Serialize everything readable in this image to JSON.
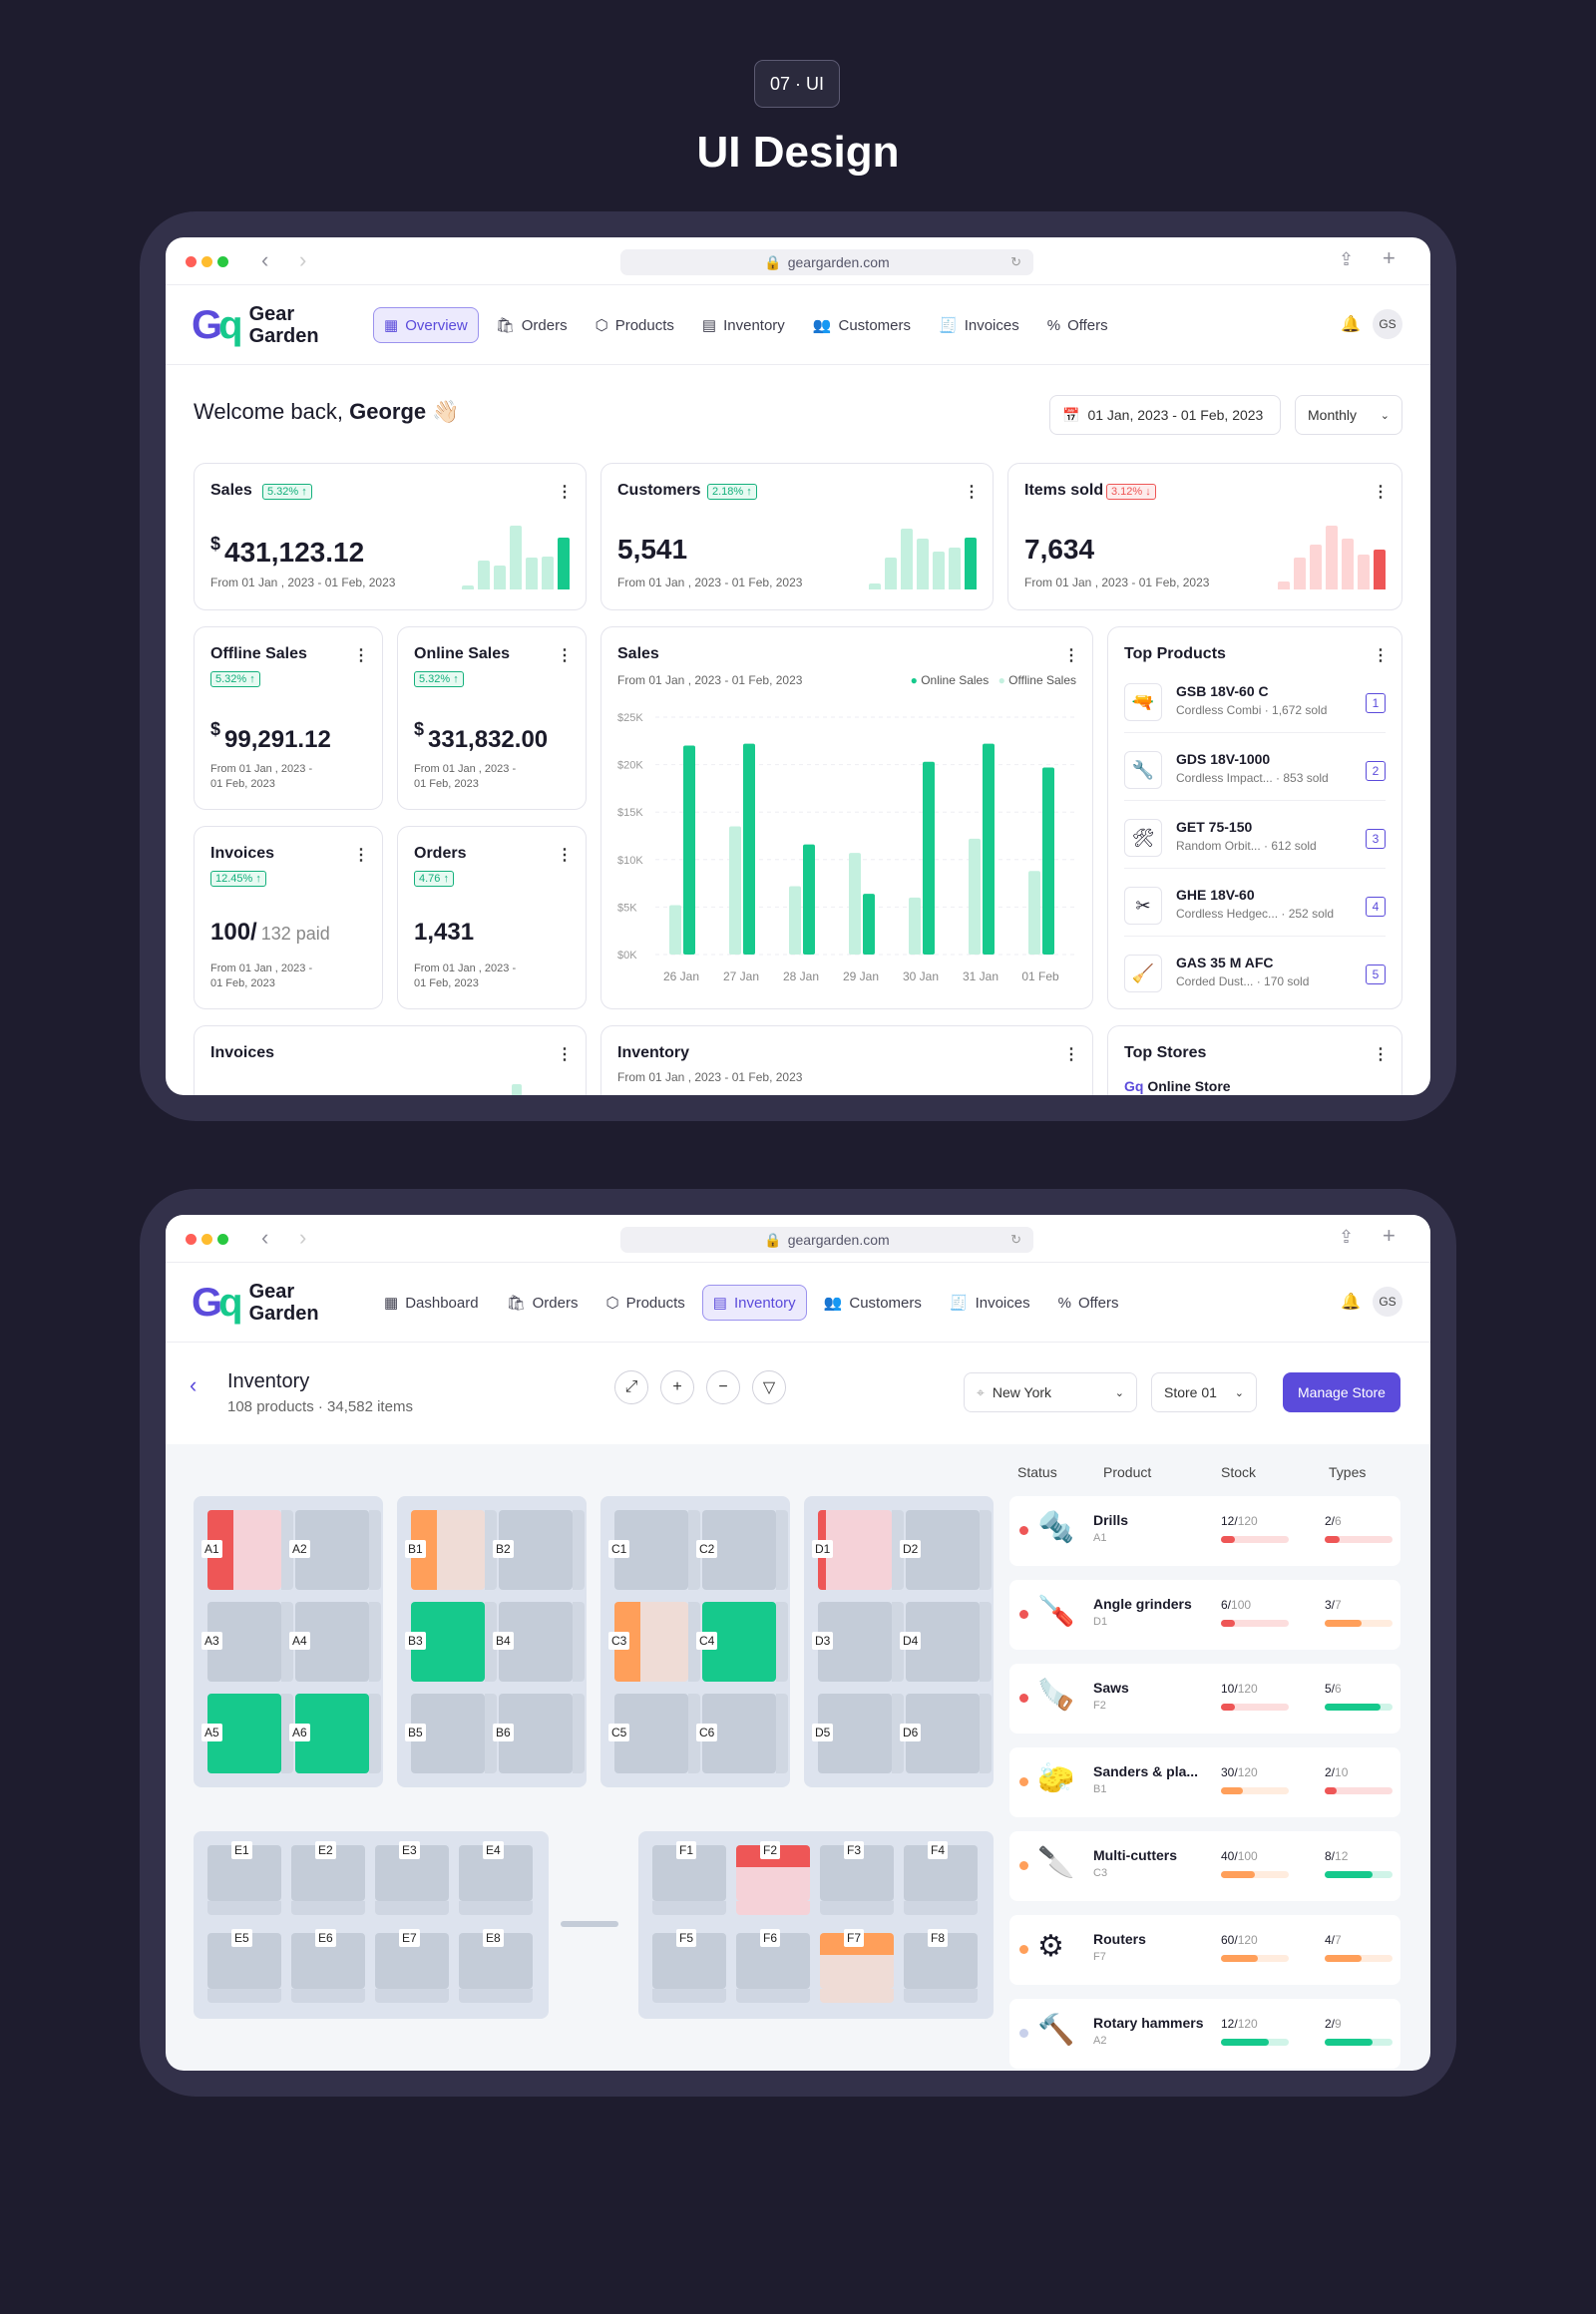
{
  "header": {
    "badge": "07 · UI",
    "title": "UI Design"
  },
  "browser": {
    "url": "geargarden.com"
  },
  "brand": {
    "name_1": "Gear",
    "name_2": "Garden",
    "primary": "#5b4bdb",
    "green": "#16c98c",
    "red": "#ee5656",
    "orange": "#ff9f5a"
  },
  "dashboard": {
    "nav": [
      "Overview",
      "Orders",
      "Products",
      "Inventory",
      "Customers",
      "Invoices",
      "Offers"
    ],
    "avatar": "GS",
    "welcome_prefix": "Welcome back,",
    "welcome_name": "George",
    "welcome_emoji": "👋🏻",
    "date_range": "01 Jan, 2023 - 01 Feb, 2023",
    "period": "Monthly",
    "kpis": [
      {
        "title": "Sales",
        "badge": "5.32% ↑",
        "currency": "$",
        "value": "431,123.12",
        "sub": "From 01 Jan , 2023 - 01 Feb, 2023",
        "trend": "up",
        "bars": [
          0.06,
          0.45,
          0.38,
          1.0,
          0.5,
          0.52,
          0.82
        ]
      },
      {
        "title": "Customers",
        "badge": "2.18% ↑",
        "currency": "",
        "value": "5,541",
        "sub": "From 01 Jan , 2023 - 01 Feb, 2023",
        "trend": "up",
        "bars": [
          0.1,
          0.5,
          0.95,
          0.8,
          0.6,
          0.65,
          0.82
        ]
      },
      {
        "title": "Items sold",
        "badge": "3.12% ↓",
        "currency": "",
        "value": "7,634",
        "sub": "From 01 Jan , 2023 - 01 Feb, 2023",
        "trend": "down",
        "bars": [
          0.12,
          0.5,
          0.7,
          1.0,
          0.8,
          0.55,
          0.62
        ]
      }
    ],
    "small_cards": [
      {
        "title": "Offline Sales",
        "badge": "5.32% ↑",
        "currency": "$",
        "value": "99,291.12",
        "value_suffix": "",
        "sub1": "From 01 Jan , 2023 -",
        "sub2": "01 Feb, 2023"
      },
      {
        "title": "Online Sales",
        "badge": "5.32% ↑",
        "currency": "$",
        "value": "331,832.00",
        "value_suffix": "",
        "sub1": "From 01 Jan , 2023 -",
        "sub2": "01 Feb, 2023"
      },
      {
        "title": "Invoices",
        "badge": "12.45% ↑",
        "currency": "",
        "value": "100/",
        "value_suffix": "132 paid",
        "sub1": "From 01 Jan , 2023 -",
        "sub2": "01 Feb, 2023"
      },
      {
        "title": "Orders",
        "badge": "4.76 ↑",
        "currency": "",
        "value": "1,431",
        "value_suffix": "",
        "sub1": "From 01 Jan , 2023 -",
        "sub2": "01 Feb, 2023"
      }
    ],
    "sales_chart": {
      "title": "Sales",
      "sub": "From 01 Jan , 2023 - 01 Feb, 2023",
      "legend_online": "Online Sales",
      "legend_offline": "Offline Sales"
    },
    "top_products": {
      "title": "Top Products",
      "items": [
        {
          "name": "GSB 18V-60 C",
          "desc": "Cordless Combi · 1,672 sold",
          "rank": "1",
          "icon": "drill-icon"
        },
        {
          "name": "GDS 18V-1000",
          "desc": "Cordless Impact... · 853 sold",
          "rank": "2",
          "icon": "impact-icon"
        },
        {
          "name": "GET 75-150",
          "desc": "Random Orbit... · 612 sold",
          "rank": "3",
          "icon": "sander-icon"
        },
        {
          "name": "GHE 18V-60",
          "desc": "Cordless Hedgec... · 252 sold",
          "rank": "4",
          "icon": "hedge-icon"
        },
        {
          "name": "GAS 35 M AFC",
          "desc": "Corded Dust... · 170 sold",
          "rank": "5",
          "icon": "vacuum-icon"
        }
      ]
    },
    "bottom": {
      "invoices": "Invoices",
      "inventory": "Inventory",
      "inventory_sub": "From 01 Jan , 2023 - 01 Feb, 2023",
      "top_stores": "Top Stores",
      "store1": "Online Store"
    }
  },
  "chart_data": {
    "type": "bar",
    "categories": [
      "26 Jan",
      "27 Jan",
      "28 Jan",
      "29 Jan",
      "30 Jan",
      "31 Jan",
      "01 Feb"
    ],
    "series": [
      {
        "name": "Online Sales",
        "values": [
          22000,
          22200,
          11600,
          6400,
          20300,
          22200,
          19700
        ]
      },
      {
        "name": "Offline Sales",
        "values": [
          5200,
          13500,
          7200,
          10700,
          6000,
          12200,
          8800
        ]
      }
    ],
    "ylim": [
      0,
      25000
    ],
    "yticks": [
      "$0K",
      "$5K",
      "$10K",
      "$15K",
      "$20K",
      "$25K"
    ],
    "colors": {
      "online": "#16c98c",
      "offline": "#c4f0df"
    }
  },
  "inventory": {
    "nav": [
      "Dashboard",
      "Orders",
      "Products",
      "Inventory",
      "Customers",
      "Invoices",
      "Offers"
    ],
    "title": "Inventory",
    "sub": "108 products · 34,582 items",
    "city": "New York",
    "store": "Store 01",
    "manage": "Manage Store",
    "cols": [
      "Status",
      "Product",
      "Stock",
      "Types"
    ],
    "blocks": [
      [
        "A1",
        "A2",
        "A3",
        "A4",
        "A5",
        "A6"
      ],
      [
        "B1",
        "B2",
        "B3",
        "B4",
        "B5",
        "B6"
      ],
      [
        "C1",
        "C2",
        "C3",
        "C4",
        "C5",
        "C6"
      ],
      [
        "D1",
        "D2",
        "D3",
        "D4",
        "D5",
        "D6"
      ]
    ],
    "slot_state": {
      "A1": "red-low",
      "A5": "green",
      "A6": "green",
      "B1": "orange-low",
      "B3": "green",
      "C3": "orange-low",
      "C4": "green",
      "D1": "red-mid",
      "F2": "red",
      "F7": "orange"
    },
    "lower_left": [
      "E1",
      "E2",
      "E3",
      "E4",
      "E5",
      "E6",
      "E7",
      "E8"
    ],
    "lower_right": [
      "F1",
      "F2",
      "F3",
      "F4",
      "F5",
      "F6",
      "F7",
      "F8"
    ],
    "products": [
      {
        "name": "Drills",
        "loc": "A1",
        "status": "#ee5656",
        "stock": "12/",
        "stock_max": "120",
        "stock_pct": 0.1,
        "stock_color": "#ee5656",
        "types": "2/",
        "types_max": "6",
        "types_pct": 0.22,
        "types_color": "#ee5656"
      },
      {
        "name": "Angle grinders",
        "loc": "D1",
        "status": "#ee5656",
        "stock": "6/",
        "stock_max": "100",
        "stock_pct": 0.08,
        "stock_color": "#ee5656",
        "types": "3/",
        "types_max": "7",
        "types_pct": 0.55,
        "types_color": "#ff9f5a"
      },
      {
        "name": "Saws",
        "loc": "F2",
        "status": "#ee5656",
        "stock": "10/",
        "stock_max": "120",
        "stock_pct": 0.09,
        "stock_color": "#ee5656",
        "types": "5/",
        "types_max": "6",
        "types_pct": 0.83,
        "types_color": "#16c98c"
      },
      {
        "name": "Sanders & pla...",
        "loc": "B1",
        "status": "#ff9f5a",
        "stock": "30/",
        "stock_max": "120",
        "stock_pct": 0.33,
        "stock_color": "#ff9f5a",
        "types": "2/",
        "types_max": "10",
        "types_pct": 0.18,
        "types_color": "#ee5656"
      },
      {
        "name": "Multi-cutters",
        "loc": "C3",
        "status": "#ff9f5a",
        "stock": "40/",
        "stock_max": "100",
        "stock_pct": 0.5,
        "stock_color": "#ff9f5a",
        "types": "8/",
        "types_max": "12",
        "types_pct": 0.7,
        "types_color": "#16c98c"
      },
      {
        "name": "Routers",
        "loc": "F7",
        "status": "#ff9f5a",
        "stock": "60/",
        "stock_max": "120",
        "stock_pct": 0.55,
        "stock_color": "#ff9f5a",
        "types": "4/",
        "types_max": "7",
        "types_pct": 0.55,
        "types_color": "#ff9f5a"
      },
      {
        "name": "Rotary hammers",
        "loc": "A2",
        "status": "#c8d0ea",
        "stock": "12/",
        "stock_max": "120",
        "stock_pct": 0.7,
        "stock_color": "#16c98c",
        "types": "2/",
        "types_max": "9",
        "types_pct": 0.7,
        "types_color": "#16c98c"
      }
    ]
  }
}
